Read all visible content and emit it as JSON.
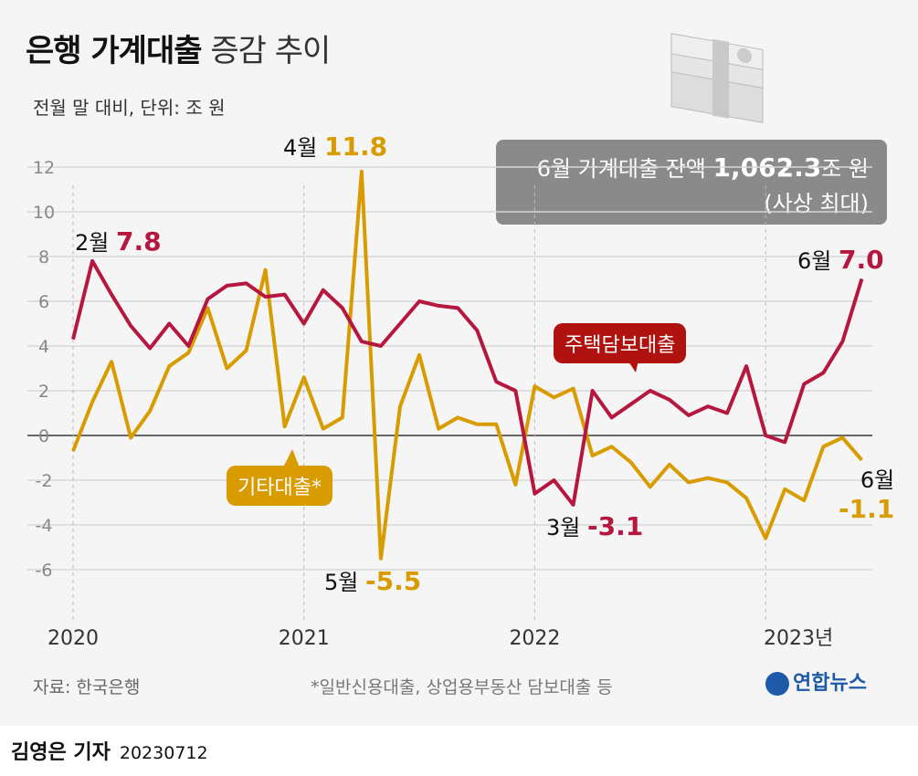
{
  "header": {
    "title_bold": "은행 가계대출",
    "title_light": "증감 추이",
    "subtitle": "전월 말 대비, 단위: 조 원"
  },
  "infobox": {
    "line1_prefix": "6월 가계대출 잔액",
    "line1_value": "1,062.3",
    "line1_suffix": "조 원",
    "line2": "(사상 최대)"
  },
  "annotations": {
    "feb2020": {
      "month": "2월",
      "value": "7.8"
    },
    "apr2021": {
      "month": "4월",
      "value": "11.8"
    },
    "may2021": {
      "month": "5월",
      "value": "-5.5"
    },
    "mar2022": {
      "month": "3월",
      "value": "-3.1"
    },
    "jun2023_mortgage": {
      "month": "6월",
      "value": "7.0"
    },
    "jun2023_other": {
      "month": "6월",
      "value": "-1.1"
    }
  },
  "footer": {
    "source": "자료: 한국은행",
    "note": "*일반신용대출, 상업용부동산 담보대출 등",
    "logo": "연합뉴스",
    "byline": "김영은 기자",
    "date": "20230712"
  },
  "chart_data": {
    "type": "line",
    "title": "은행 가계대출 증감 추이",
    "ylabel": "",
    "xlabel": "",
    "ylim": [
      -8,
      13
    ],
    "yticks": [
      -6,
      -4,
      -2,
      0,
      2,
      4,
      6,
      8,
      10,
      12
    ],
    "ytick_labels": [
      "-6",
      "-4",
      "-2",
      "0",
      "2",
      "4",
      "6",
      "8",
      "10",
      "12"
    ],
    "xtick_labels": [
      "2020",
      "2021",
      "2022",
      "2023년"
    ],
    "grid": true,
    "x_start": "2020-01",
    "x_end": "2023-06",
    "colors": {
      "mortgage": "#b5173f",
      "other": "#d89b00",
      "mortgage_tag": "#b0120f"
    },
    "series": [
      {
        "name": "주택담보대출",
        "values": [
          4.3,
          7.8,
          6.3,
          4.9,
          3.9,
          5.0,
          4.0,
          6.1,
          6.7,
          6.8,
          6.2,
          6.3,
          5.0,
          6.5,
          5.7,
          4.2,
          4.0,
          5.0,
          6.0,
          5.8,
          5.7,
          4.7,
          2.4,
          2.0,
          -2.6,
          -2.0,
          -3.1,
          2.0,
          0.8,
          1.4,
          2.0,
          1.6,
          0.9,
          1.3,
          1.0,
          3.1,
          0.0,
          -0.3,
          2.3,
          2.8,
          4.2,
          7.0
        ]
      },
      {
        "name": "기타대출*",
        "values": [
          -0.7,
          1.5,
          3.3,
          -0.1,
          1.1,
          3.1,
          3.7,
          5.7,
          3.0,
          3.8,
          7.4,
          0.4,
          2.6,
          0.3,
          0.8,
          11.8,
          -5.5,
          1.3,
          3.6,
          0.3,
          0.8,
          0.5,
          0.5,
          -2.2,
          2.2,
          1.7,
          2.1,
          -0.9,
          -0.5,
          -1.2,
          -2.3,
          -1.3,
          -2.1,
          -1.9,
          -2.1,
          -2.8,
          -4.6,
          -2.4,
          -2.9,
          -0.5,
          -0.1,
          -1.1
        ]
      }
    ]
  }
}
